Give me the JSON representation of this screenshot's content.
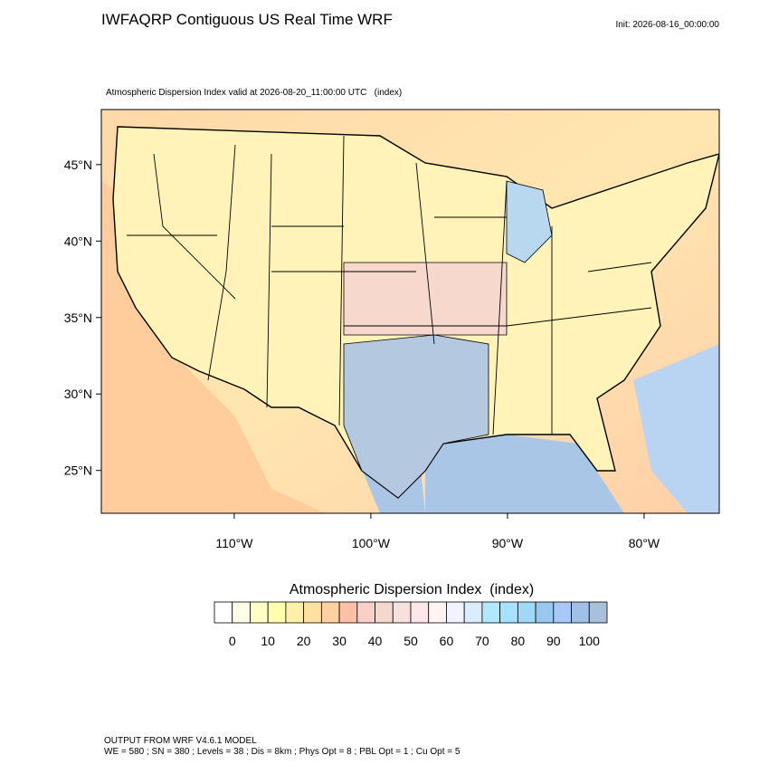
{
  "header": {
    "title": "IWFAQRP Contiguous US Real Time WRF",
    "init": "Init: 2026-08-16_00:00:00"
  },
  "map": {
    "subtitle": "Atmospheric Dispersion Index valid at 2026-08-20_11:00:00 UTC   (index)",
    "lat_ticks": [
      {
        "value": 45,
        "label": "45°N"
      },
      {
        "value": 40,
        "label": "40°N"
      },
      {
        "value": 35,
        "label": "35°N"
      },
      {
        "value": 30,
        "label": "30°N"
      },
      {
        "value": 25,
        "label": "25°N"
      }
    ],
    "lon_ticks": [
      {
        "value": -110,
        "label": "110°W"
      },
      {
        "value": -100,
        "label": "100°W"
      },
      {
        "value": -90,
        "label": "90°W"
      },
      {
        "value": -80,
        "label": "80°W"
      }
    ]
  },
  "colorbar": {
    "title": "Atmospheric Dispersion Index  (index)",
    "levels": [
      0,
      5,
      10,
      15,
      20,
      25,
      30,
      35,
      40,
      45,
      50,
      55,
      60,
      65,
      70,
      75,
      80,
      85,
      90,
      95,
      100
    ],
    "ticks": [
      0,
      10,
      20,
      30,
      40,
      50,
      60,
      70,
      80,
      90,
      100
    ],
    "colors": [
      "#ffffff",
      "#fffde6",
      "#ffffc8",
      "#ffffb0",
      "#fff0a8",
      "#ffe0a0",
      "#ffd0a0",
      "#ffc0a8",
      "#f8d0c8",
      "#f4d8d0",
      "#f8e0dc",
      "#fce8e8",
      "#fff4f4",
      "#f0f4ff",
      "#dcecff",
      "#b0e8ff",
      "#a8e0ff",
      "#a0d8f8",
      "#98c8f0",
      "#a8c8f8",
      "#a0c0e8",
      "#a8c0d8"
    ]
  },
  "footer": {
    "lines": [
      "OUTPUT FROM WRF V4.6.1 MODEL",
      "WE = 580 ; SN = 380 ; Levels = 38 ; Dis = 8km ; Phys Opt = 8 ; PBL Opt = 1 ; Cu Opt = 5"
    ]
  }
}
